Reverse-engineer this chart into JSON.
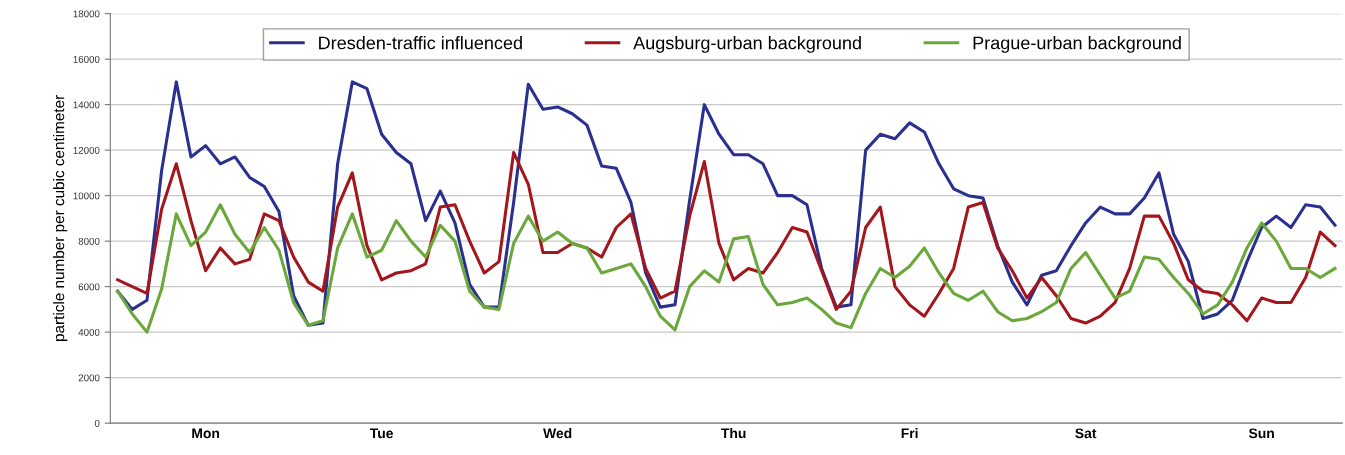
{
  "chart_data": {
    "type": "line",
    "ylabel": "particle number per cubic centimeter",
    "categories": [
      null,
      null,
      null,
      null,
      null,
      null,
      "Mon",
      null,
      null,
      null,
      null,
      null,
      null,
      null,
      null,
      null,
      null,
      null,
      "Tue",
      null,
      null,
      null,
      null,
      null,
      null,
      null,
      null,
      null,
      null,
      null,
      "Wed",
      null,
      null,
      null,
      null,
      null,
      null,
      null,
      null,
      null,
      null,
      null,
      "Thu",
      null,
      null,
      null,
      null,
      null,
      null,
      null,
      null,
      null,
      null,
      null,
      "Fri",
      null,
      null,
      null,
      null,
      null,
      null,
      null,
      null,
      null,
      null,
      null,
      "Sat",
      null,
      null,
      null,
      null,
      null,
      null,
      null,
      null,
      null,
      null,
      null,
      "Sun",
      null,
      null,
      null,
      null,
      null
    ],
    "ylim": [
      0,
      18000
    ],
    "yticks": [
      0,
      2000,
      4000,
      6000,
      8000,
      10000,
      12000,
      14000,
      16000,
      18000
    ],
    "grid": "y",
    "legend": "top",
    "marker": "none",
    "line_style": "solid",
    "series": [
      {
        "name": "Dresden-traffic influenced",
        "color": "#2b2f8f",
        "values": [
          5800,
          5000,
          5400,
          11100,
          15000,
          11700,
          12200,
          11400,
          11700,
          10800,
          10400,
          9300,
          5600,
          4300,
          4400,
          11400,
          15000,
          14700,
          12700,
          11900,
          11400,
          8900,
          10200,
          8800,
          6100,
          5100,
          5100,
          9700,
          14900,
          13800,
          13900,
          13600,
          13100,
          11300,
          11200,
          9700,
          6600,
          5100,
          5200,
          9800,
          14000,
          12700,
          11800,
          11800,
          11400,
          10000,
          10000,
          9600,
          6800,
          5100,
          5200,
          12000,
          12700,
          12500,
          13200,
          12800,
          11400,
          10300,
          10000,
          9900,
          7800,
          6200,
          5200,
          6500,
          6700,
          7800,
          8800,
          9500,
          9200,
          9200,
          9900,
          11000,
          8300,
          7100,
          4600,
          4800,
          5400,
          7100,
          8600,
          9100,
          8600,
          9600,
          9500,
          8700
        ]
      },
      {
        "name": "Augsburg-urban background",
        "color": "#a3161c",
        "values": [
          6300,
          6000,
          5700,
          9400,
          11400,
          8900,
          6700,
          7700,
          7000,
          7200,
          9200,
          8900,
          7300,
          6200,
          5800,
          9500,
          11000,
          7800,
          6300,
          6600,
          6700,
          7000,
          9500,
          9600,
          8000,
          6600,
          7100,
          11900,
          10500,
          7500,
          7500,
          7900,
          7700,
          7300,
          8600,
          9200,
          6800,
          5500,
          5800,
          9100,
          11500,
          7900,
          6300,
          6800,
          6600,
          7500,
          8600,
          8400,
          6700,
          5000,
          5800,
          8600,
          9500,
          6000,
          5200,
          4700,
          5700,
          6800,
          9500,
          9700,
          7700,
          6700,
          5500,
          6400,
          5600,
          4600,
          4400,
          4700,
          5300,
          6800,
          9100,
          9100,
          7900,
          6300,
          5800,
          5700,
          5200,
          4500,
          5500,
          5300,
          5300,
          6400,
          8400,
          7800
        ]
      },
      {
        "name": "Prague-urban background",
        "color": "#6aa83c",
        "values": [
          5800,
          4800,
          4000,
          5900,
          9200,
          7800,
          8400,
          9600,
          8300,
          7500,
          8600,
          7600,
          5300,
          4300,
          4500,
          7700,
          9200,
          7300,
          7600,
          8900,
          8000,
          7300,
          8700,
          8000,
          5800,
          5100,
          5000,
          7900,
          9100,
          8000,
          8400,
          7900,
          7700,
          6600,
          6800,
          7000,
          6000,
          4700,
          4100,
          6000,
          6700,
          6200,
          8100,
          8200,
          6100,
          5200,
          5300,
          5500,
          5000,
          4400,
          4200,
          5700,
          6800,
          6400,
          6900,
          7700,
          6600,
          5700,
          5400,
          5800,
          4900,
          4500,
          4600,
          4900,
          5300,
          6800,
          7500,
          6500,
          5500,
          5800,
          7300,
          7200,
          6400,
          5700,
          4800,
          5200,
          6200,
          7700,
          8800,
          8000,
          6800,
          6800,
          6400,
          6800
        ]
      }
    ]
  }
}
